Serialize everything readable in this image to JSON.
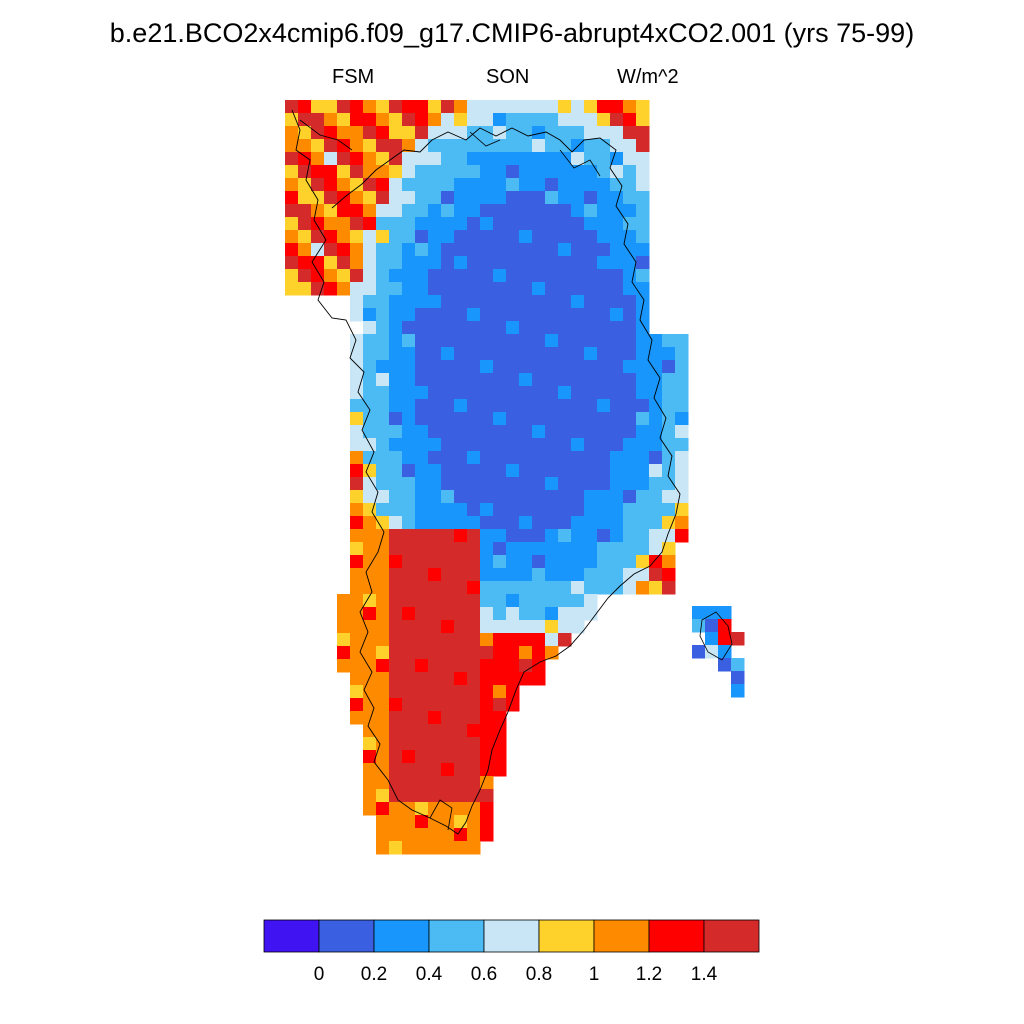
{
  "title": "b.e21.BCO2x4cmip6.f09_g17.CMIP6-abrupt4xCO2.001 (yrs 75-99)",
  "subtitle_left": "FSM",
  "subtitle_center": "SON",
  "subtitle_right": "W/m^2",
  "colorbar": {
    "colors": [
      "#3f13f2",
      "#3a5fe0",
      "#1896fb",
      "#4cbaf3",
      "#c8e6f5",
      "#fed22b",
      "#fe8a00",
      "#fe0000",
      "#d52a2a"
    ],
    "tick_labels": [
      "0",
      "0.2",
      "0.4",
      "0.6",
      "0.8",
      "1",
      "1.2",
      "1.4"
    ]
  }
}
